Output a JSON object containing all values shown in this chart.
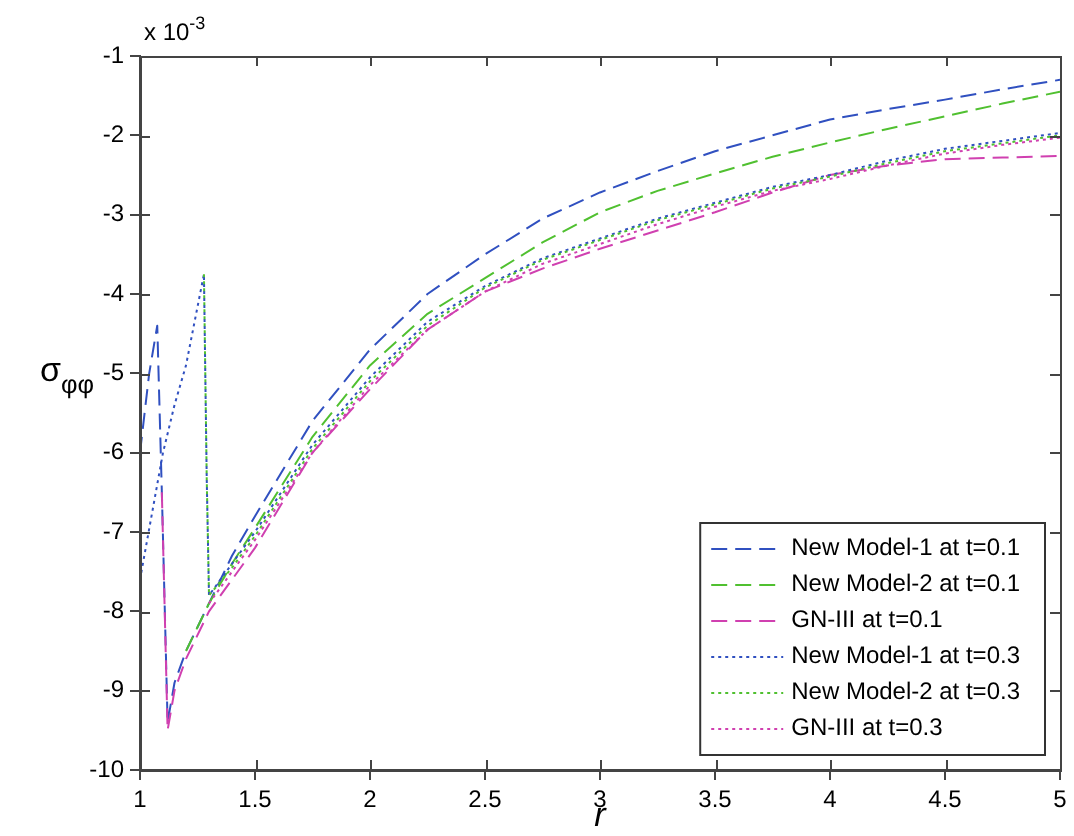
{
  "chart_data": {
    "type": "line",
    "xlabel": "r",
    "ylabel": "σ$_{φφ}$",
    "annotations": [
      "x 10$^{-3}$"
    ],
    "xlim": [
      1,
      5
    ],
    "xticks": [
      1,
      1.5,
      2,
      2.5,
      3,
      3.5,
      4,
      4.5,
      5
    ],
    "ylim": [
      -10,
      -1
    ],
    "yticks": [
      -10,
      -9,
      -8,
      -7,
      -6,
      -5,
      -4,
      -3,
      -2,
      -1
    ],
    "grid": false,
    "legend": "bottom right",
    "marker": "none",
    "series": [
      {
        "name": "New Model-1 at t=0.1",
        "color": "#3050c0",
        "line_style": "dashed",
        "x": [
          1,
          1.04,
          1.075,
          1.095,
          1.12,
          1.15,
          1.2,
          1.3,
          1.4,
          1.5,
          1.75,
          2,
          2.25,
          2.5,
          2.75,
          3,
          3.25,
          3.5,
          3.75,
          4,
          4.25,
          4.5,
          4.75,
          5
        ],
        "values": [
          -6.0,
          -5.0,
          -4.4,
          -6.5,
          -9.4,
          -8.9,
          -8.5,
          -7.9,
          -7.3,
          -6.8,
          -5.6,
          -4.7,
          -4.0,
          -3.5,
          -3.05,
          -2.72,
          -2.45,
          -2.2,
          -2.0,
          -1.8,
          -1.67,
          -1.55,
          -1.42,
          -1.3
        ]
      },
      {
        "name": "New Model-2 at t=0.1",
        "color": "#50c030",
        "line_style": "dashed",
        "x": [
          1.2,
          1.3,
          1.4,
          1.5,
          1.75,
          2,
          2.25,
          2.5,
          2.75,
          3,
          3.25,
          3.5,
          3.75,
          4,
          4.25,
          4.5,
          4.75,
          5
        ],
        "values": [
          -8.5,
          -7.9,
          -7.4,
          -6.95,
          -5.8,
          -4.9,
          -4.25,
          -3.8,
          -3.35,
          -2.97,
          -2.7,
          -2.48,
          -2.27,
          -2.09,
          -1.92,
          -1.76,
          -1.6,
          -1.45
        ]
      },
      {
        "name": "GN-III at t=0.1",
        "color": "#d040b0",
        "line_style": "dashed",
        "x": [
          1.095,
          1.12,
          1.15,
          1.2,
          1.3,
          1.4,
          1.5,
          1.75,
          2,
          2.25,
          2.5,
          2.75,
          3,
          3.25,
          3.5,
          3.75,
          4,
          4.25,
          4.5,
          4.75,
          5
        ],
        "values": [
          -6.5,
          -9.5,
          -9.0,
          -8.6,
          -8.0,
          -7.6,
          -7.2,
          -6.0,
          -5.2,
          -4.45,
          -3.97,
          -3.68,
          -3.43,
          -3.2,
          -2.97,
          -2.72,
          -2.5,
          -2.38,
          -2.3,
          -2.28,
          -2.26
        ]
      },
      {
        "name": "New Model-1 at t=0.3",
        "color": "#3050c0",
        "line_style": "dotted",
        "x": [
          1,
          1.05,
          1.1,
          1.15,
          1.2,
          1.278,
          1.29,
          1.3,
          1.4,
          1.5,
          1.75,
          2,
          2.25,
          2.5,
          2.75,
          3,
          3.25,
          3.5,
          3.75,
          4,
          4.25,
          4.5,
          4.75,
          5
        ],
        "values": [
          -7.6,
          -6.8,
          -6.0,
          -5.4,
          -4.9,
          -3.75,
          -6.3,
          -7.8,
          -7.4,
          -7.0,
          -5.9,
          -5.05,
          -4.35,
          -3.9,
          -3.55,
          -3.3,
          -3.05,
          -2.85,
          -2.65,
          -2.5,
          -2.32,
          -2.17,
          -2.07,
          -1.97
        ]
      },
      {
        "name": "New Model-2 at t=0.3",
        "color": "#50c030",
        "line_style": "dotted",
        "x": [
          1.278,
          1.29,
          1.3,
          1.4,
          1.5,
          1.75,
          2,
          2.25,
          2.5,
          2.75,
          3,
          3.25,
          3.5,
          3.75,
          4,
          4.25,
          4.5,
          4.75,
          5
        ],
        "values": [
          -3.75,
          -6.3,
          -7.8,
          -7.45,
          -7.05,
          -5.95,
          -5.1,
          -4.4,
          -3.92,
          -3.57,
          -3.32,
          -3.07,
          -2.87,
          -2.67,
          -2.52,
          -2.35,
          -2.2,
          -2.1,
          -2.0
        ]
      },
      {
        "name": "GN-III at t=0.3",
        "color": "#d040b0",
        "line_style": "dotted",
        "x": [
          1.3,
          1.4,
          1.5,
          1.75,
          2,
          2.25,
          2.5,
          2.75,
          3,
          3.25,
          3.5,
          3.75,
          4,
          4.25,
          4.5,
          4.75,
          5
        ],
        "values": [
          -7.9,
          -7.5,
          -7.1,
          -6.0,
          -5.15,
          -4.45,
          -3.97,
          -3.62,
          -3.37,
          -3.12,
          -2.9,
          -2.7,
          -2.55,
          -2.38,
          -2.23,
          -2.12,
          -2.03
        ]
      }
    ]
  }
}
